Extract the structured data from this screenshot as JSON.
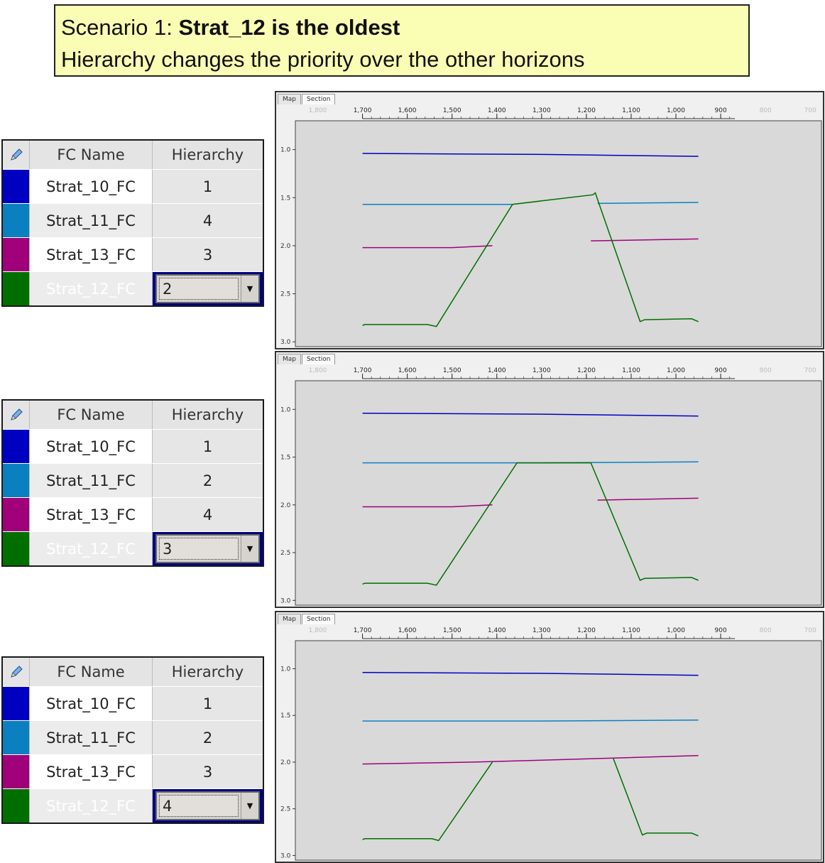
{
  "banner": {
    "line1_prefix": "Scenario 1: ",
    "line1_bold": "Strat_12 is the oldest",
    "line2": "Hierarchy changes the priority over the other horizons"
  },
  "colors": {
    "strat_10": "#0000c0",
    "strat_11": "#0a80c0",
    "strat_13": "#a0007a",
    "strat_12": "#006f00",
    "selected_bg": "#000080",
    "plot_bg": "#d9d9d9"
  },
  "tables": [
    {
      "header": {
        "icon": "pencil-icon",
        "name": "FC Name",
        "hierarchy": "Hierarchy"
      },
      "rows": [
        {
          "name": "Strat_10_FC",
          "hierarchy": "1",
          "color": "#0000c0"
        },
        {
          "name": "Strat_11_FC",
          "hierarchy": "4",
          "color": "#0a80c0"
        },
        {
          "name": "Strat_13_FC",
          "hierarchy": "3",
          "color": "#a0007a"
        },
        {
          "name": "Strat_12_FC",
          "hierarchy": "2",
          "color": "#006f00",
          "selected": true
        }
      ]
    },
    {
      "header": {
        "icon": "pencil-icon",
        "name": "FC Name",
        "hierarchy": "Hierarchy"
      },
      "rows": [
        {
          "name": "Strat_10_FC",
          "hierarchy": "1",
          "color": "#0000c0"
        },
        {
          "name": "Strat_11_FC",
          "hierarchy": "2",
          "color": "#0a80c0"
        },
        {
          "name": "Strat_13_FC",
          "hierarchy": "4",
          "color": "#a0007a"
        },
        {
          "name": "Strat_12_FC",
          "hierarchy": "3",
          "color": "#006f00",
          "selected": true
        }
      ]
    },
    {
      "header": {
        "icon": "pencil-icon",
        "name": "FC Name",
        "hierarchy": "Hierarchy"
      },
      "rows": [
        {
          "name": "Strat_10_FC",
          "hierarchy": "1",
          "color": "#0000c0"
        },
        {
          "name": "Strat_11_FC",
          "hierarchy": "2",
          "color": "#0a80c0"
        },
        {
          "name": "Strat_13_FC",
          "hierarchy": "3",
          "color": "#a0007a"
        },
        {
          "name": "Strat_12_FC",
          "hierarchy": "4",
          "color": "#006f00",
          "selected": true
        }
      ]
    }
  ],
  "sections": [
    {
      "tabs": [
        "Map",
        "Section"
      ],
      "x_ticks": [
        "1,800",
        "1,700",
        "1,600",
        "1,500",
        "1,400",
        "1,300",
        "1,200",
        "1,100",
        "1,000",
        "900",
        "800",
        "700"
      ],
      "y_ticks": [
        "1.0",
        "1.5",
        "2.0",
        "2.5",
        "3.0"
      ],
      "horizons": [
        {
          "name": "Strat_10_FC",
          "color": "#0000c0",
          "points": [
            [
              1700,
              1.04
            ],
            [
              1300,
              1.05
            ],
            [
              950,
              1.07
            ]
          ]
        },
        {
          "name": "Strat_11_FC",
          "color": "#0a80c0",
          "points": [
            [
              1700,
              1.57
            ],
            [
              1365,
              1.57
            ]
          ],
          "segments": [
            [
              [
                1175,
                1.56
              ],
              [
                950,
                1.55
              ]
            ]
          ]
        },
        {
          "name": "Strat_13_FC",
          "color": "#a0007a",
          "points": [
            [
              1700,
              2.02
            ],
            [
              1500,
              2.02
            ],
            [
              1410,
              2.0
            ]
          ],
          "segments": [
            [
              [
                1190,
                1.95
              ],
              [
                950,
                1.93
              ]
            ]
          ]
        },
        {
          "name": "Strat_12_FC",
          "color": "#006f00",
          "points": [
            [
              1700,
              2.83
            ],
            [
              1695,
              2.82
            ],
            [
              1555,
              2.82
            ],
            [
              1535,
              2.84
            ],
            [
              1365,
              1.57
            ],
            [
              1185,
              1.47
            ],
            [
              1180,
              1.45
            ],
            [
              1175,
              1.52
            ],
            [
              1080,
              2.79
            ],
            [
              1070,
              2.77
            ],
            [
              965,
              2.76
            ],
            [
              950,
              2.79
            ]
          ]
        }
      ]
    },
    {
      "tabs": [
        "Map",
        "Section"
      ],
      "x_ticks": [
        "1,800",
        "1,700",
        "1,600",
        "1,500",
        "1,400",
        "1,300",
        "1,200",
        "1,100",
        "1,000",
        "900",
        "800",
        "700"
      ],
      "y_ticks": [
        "1.0",
        "1.5",
        "2.0",
        "2.5",
        "3.0"
      ],
      "horizons": [
        {
          "name": "Strat_10_FC",
          "color": "#0000c0",
          "points": [
            [
              1700,
              1.04
            ],
            [
              1300,
              1.05
            ],
            [
              950,
              1.07
            ]
          ]
        },
        {
          "name": "Strat_11_FC",
          "color": "#0a80c0",
          "points": [
            [
              1700,
              1.56
            ],
            [
              1300,
              1.56
            ],
            [
              950,
              1.55
            ]
          ]
        },
        {
          "name": "Strat_13_FC",
          "color": "#a0007a",
          "points": [
            [
              1700,
              2.02
            ],
            [
              1500,
              2.02
            ],
            [
              1410,
              2.0
            ]
          ],
          "segments": [
            [
              [
                1175,
                1.95
              ],
              [
                950,
                1.93
              ]
            ]
          ]
        },
        {
          "name": "Strat_12_FC",
          "color": "#006f00",
          "points": [
            [
              1700,
              2.83
            ],
            [
              1695,
              2.82
            ],
            [
              1555,
              2.82
            ],
            [
              1535,
              2.84
            ],
            [
              1355,
              1.56
            ],
            [
              1190,
              1.56
            ],
            [
              1080,
              2.79
            ],
            [
              1070,
              2.77
            ],
            [
              965,
              2.76
            ],
            [
              950,
              2.79
            ]
          ]
        }
      ]
    },
    {
      "tabs": [
        "Map",
        "Section"
      ],
      "x_ticks": [
        "1,800",
        "1,700",
        "1,600",
        "1,500",
        "1,400",
        "1,300",
        "1,200",
        "1,100",
        "1,000",
        "900",
        "800",
        "700"
      ],
      "y_ticks": [
        "1.0",
        "1.5",
        "2.0",
        "2.5",
        "3.0"
      ],
      "horizons": [
        {
          "name": "Strat_10_FC",
          "color": "#0000c0",
          "points": [
            [
              1700,
              1.04
            ],
            [
              1300,
              1.05
            ],
            [
              950,
              1.07
            ]
          ]
        },
        {
          "name": "Strat_11_FC",
          "color": "#0a80c0",
          "points": [
            [
              1700,
              1.56
            ],
            [
              1300,
              1.56
            ],
            [
              950,
              1.55
            ]
          ]
        },
        {
          "name": "Strat_13_FC",
          "color": "#a0007a",
          "points": [
            [
              1700,
              2.02
            ],
            [
              1450,
              2.0
            ],
            [
              1300,
              1.98
            ],
            [
              950,
              1.93
            ]
          ]
        },
        {
          "name": "Strat_12_FC",
          "color": "#006f00",
          "points": [
            [
              1700,
              2.83
            ],
            [
              1695,
              2.82
            ],
            [
              1545,
              2.82
            ],
            [
              1530,
              2.84
            ],
            [
              1410,
              2.0
            ]
          ],
          "segments": [
            [
              [
                1140,
                1.96
              ],
              [
                1075,
                2.78
              ],
              [
                1065,
                2.76
              ],
              [
                965,
                2.76
              ],
              [
                950,
                2.79
              ]
            ]
          ]
        }
      ]
    }
  ]
}
